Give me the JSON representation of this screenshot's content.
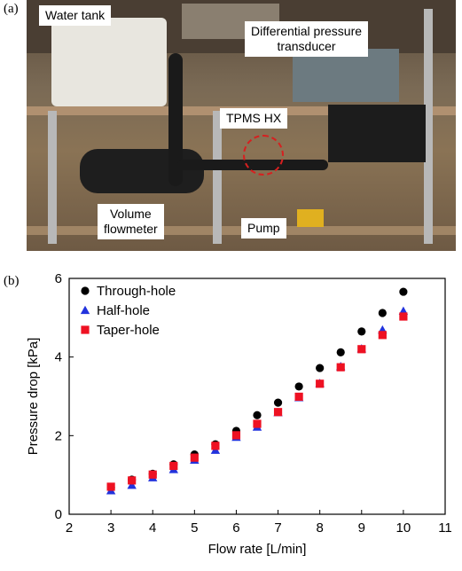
{
  "panel_labels": {
    "a": "(a)",
    "b": "(b)"
  },
  "photo": {
    "callouts": {
      "water_tank": "Water tank",
      "dpt_line1": "Differential pressure",
      "dpt_line2": "transducer",
      "tpms_hx": "TPMS HX",
      "flowmeter_line1": "Volume",
      "flowmeter_line2": "flowmeter",
      "pump": "Pump"
    },
    "highlight_color": "#d62020"
  },
  "chart_data": {
    "type": "scatter",
    "xlabel": "Flow rate [L/min]",
    "ylabel": "Pressure drop [kPa]",
    "xlim": [
      2,
      11
    ],
    "ylim": [
      0,
      6
    ],
    "xticks": [
      "2",
      "3",
      "4",
      "5",
      "6",
      "7",
      "8",
      "9",
      "10",
      "11"
    ],
    "yticks": [
      "0",
      "2",
      "4",
      "6"
    ],
    "grid": false,
    "legend_position": "top-left",
    "series": [
      {
        "name": "Through-hole",
        "marker": "circle",
        "color": "#000000",
        "points": [
          [
            3.0,
            0.68
          ],
          [
            3.5,
            0.88
          ],
          [
            4.0,
            1.03
          ],
          [
            4.5,
            1.27
          ],
          [
            5.0,
            1.52
          ],
          [
            5.5,
            1.78
          ],
          [
            6.0,
            2.12
          ],
          [
            6.5,
            2.52
          ],
          [
            7.0,
            2.84
          ],
          [
            7.5,
            3.25
          ],
          [
            8.0,
            3.72
          ],
          [
            8.5,
            4.12
          ],
          [
            9.0,
            4.65
          ],
          [
            9.5,
            5.12
          ],
          [
            10.0,
            5.66
          ]
        ]
      },
      {
        "name": "Half-hole",
        "marker": "triangle",
        "color": "#2233dd",
        "points": [
          [
            3.0,
            0.6
          ],
          [
            3.5,
            0.74
          ],
          [
            4.0,
            0.93
          ],
          [
            4.5,
            1.14
          ],
          [
            5.0,
            1.38
          ],
          [
            5.5,
            1.63
          ],
          [
            6.0,
            1.96
          ],
          [
            6.5,
            2.22
          ],
          [
            7.0,
            2.59
          ],
          [
            7.5,
            2.97
          ],
          [
            8.0,
            3.33
          ],
          [
            8.5,
            3.76
          ],
          [
            9.0,
            4.21
          ],
          [
            9.5,
            4.69
          ],
          [
            10.0,
            5.17
          ]
        ]
      },
      {
        "name": "Taper-hole",
        "marker": "square",
        "color": "#ee1122",
        "points": [
          [
            3.0,
            0.7
          ],
          [
            3.5,
            0.86
          ],
          [
            4.0,
            1.01
          ],
          [
            4.5,
            1.23
          ],
          [
            5.0,
            1.44
          ],
          [
            5.5,
            1.74
          ],
          [
            6.0,
            2.01
          ],
          [
            6.5,
            2.3
          ],
          [
            7.0,
            2.6
          ],
          [
            7.5,
            2.99
          ],
          [
            8.0,
            3.32
          ],
          [
            8.5,
            3.74
          ],
          [
            9.0,
            4.2
          ],
          [
            9.5,
            4.56
          ],
          [
            10.0,
            5.03
          ]
        ]
      }
    ]
  }
}
